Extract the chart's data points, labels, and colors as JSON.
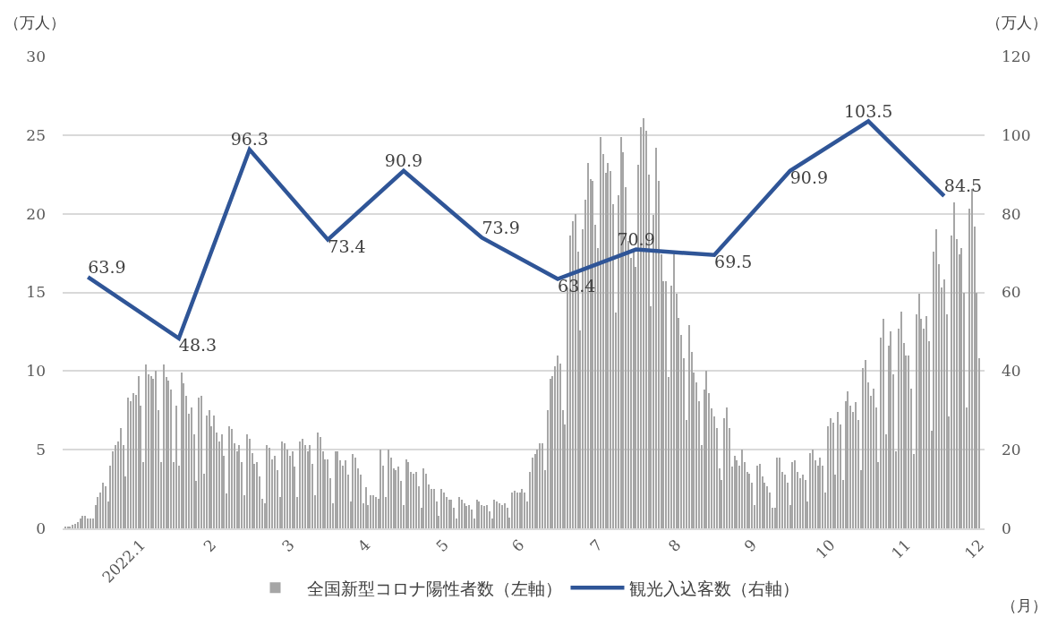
{
  "chart_data": {
    "type": "bar",
    "xlabel": "（月）",
    "ylabel": "（万人）",
    "y2label": "（万人）",
    "xlim": [
      "2021-12-31",
      "2022-12-31"
    ],
    "xticks": [
      {
        "value": "2022-01-31",
        "label": "2022.1"
      },
      {
        "value": "2022-02-28",
        "label": "2"
      },
      {
        "value": "2022-03-31",
        "label": "3"
      },
      {
        "value": "2022-04-30",
        "label": "4"
      },
      {
        "value": "2022-05-31",
        "label": "5"
      },
      {
        "value": "2022-06-30",
        "label": "6"
      },
      {
        "value": "2022-07-31",
        "label": "7"
      },
      {
        "value": "2022-08-31",
        "label": "8"
      },
      {
        "value": "2022-09-30",
        "label": "9"
      },
      {
        "value": "2022-10-31",
        "label": "10"
      },
      {
        "value": "2022-11-30",
        "label": "11"
      },
      {
        "value": "2022-12-29",
        "label": "12"
      }
    ],
    "ylim": [
      0,
      30
    ],
    "yticks": [
      0,
      5,
      10,
      15,
      20,
      25,
      30
    ],
    "y2lim": [
      0,
      120
    ],
    "y2ticks": [
      0,
      20,
      40,
      60,
      80,
      100,
      120
    ],
    "grid": "y",
    "legend": "bottom",
    "series": [
      {
        "name": "全国新型コロナ陽性者数（左軸）",
        "color": "#a6a6a6",
        "x": [
          "2022-01-01",
          "2022-01-02",
          "2022-01-03",
          "2022-01-04",
          "2022-01-05",
          "2022-01-06",
          "2022-01-07",
          "2022-01-08",
          "2022-01-09",
          "2022-01-10",
          "2022-01-11",
          "2022-01-12",
          "2022-01-13",
          "2022-01-14",
          "2022-01-15",
          "2022-01-16",
          "2022-01-17",
          "2022-01-18",
          "2022-01-19",
          "2022-01-20",
          "2022-01-21",
          "2022-01-22",
          "2022-01-23",
          "2022-01-24",
          "2022-01-25",
          "2022-01-26",
          "2022-01-27",
          "2022-01-28",
          "2022-01-29",
          "2022-01-30",
          "2022-01-31",
          "2022-02-01",
          "2022-02-02",
          "2022-02-03",
          "2022-02-04",
          "2022-02-05",
          "2022-02-06",
          "2022-02-07",
          "2022-02-08",
          "2022-02-09",
          "2022-02-10",
          "2022-02-11",
          "2022-02-12",
          "2022-02-13",
          "2022-02-14",
          "2022-02-15",
          "2022-02-16",
          "2022-02-17",
          "2022-02-18",
          "2022-02-19",
          "2022-02-20",
          "2022-02-21",
          "2022-02-22",
          "2022-02-23",
          "2022-02-24",
          "2022-02-25",
          "2022-02-26",
          "2022-02-27",
          "2022-02-28",
          "2022-03-01",
          "2022-03-02",
          "2022-03-03",
          "2022-03-04",
          "2022-03-05",
          "2022-03-06",
          "2022-03-07",
          "2022-03-08",
          "2022-03-09",
          "2022-03-10",
          "2022-03-11",
          "2022-03-12",
          "2022-03-13",
          "2022-03-14",
          "2022-03-15",
          "2022-03-16",
          "2022-03-17",
          "2022-03-18",
          "2022-03-19",
          "2022-03-20",
          "2022-03-21",
          "2022-03-22",
          "2022-03-23",
          "2022-03-24",
          "2022-03-25",
          "2022-03-26",
          "2022-03-27",
          "2022-03-28",
          "2022-03-29",
          "2022-03-30",
          "2022-03-31",
          "2022-04-01",
          "2022-04-02",
          "2022-04-03",
          "2022-04-04",
          "2022-04-05",
          "2022-04-06",
          "2022-04-07",
          "2022-04-08",
          "2022-04-09",
          "2022-04-10",
          "2022-04-11",
          "2022-04-12",
          "2022-04-13",
          "2022-04-14",
          "2022-04-15",
          "2022-04-16",
          "2022-04-17",
          "2022-04-18",
          "2022-04-19",
          "2022-04-20",
          "2022-04-21",
          "2022-04-22",
          "2022-04-23",
          "2022-04-24",
          "2022-04-25",
          "2022-04-26",
          "2022-04-27",
          "2022-04-28",
          "2022-04-29",
          "2022-04-30",
          "2022-05-01",
          "2022-05-02",
          "2022-05-03",
          "2022-05-04",
          "2022-05-05",
          "2022-05-06",
          "2022-05-07",
          "2022-05-08",
          "2022-05-09",
          "2022-05-10",
          "2022-05-11",
          "2022-05-12",
          "2022-05-13",
          "2022-05-14",
          "2022-05-15",
          "2022-05-16",
          "2022-05-17",
          "2022-05-18",
          "2022-05-19",
          "2022-05-20",
          "2022-05-21",
          "2022-05-22",
          "2022-05-23",
          "2022-05-24",
          "2022-05-25",
          "2022-05-26",
          "2022-05-27",
          "2022-05-28",
          "2022-05-29",
          "2022-05-30",
          "2022-05-31",
          "2022-06-01",
          "2022-06-02",
          "2022-06-03",
          "2022-06-04",
          "2022-06-05",
          "2022-06-06",
          "2022-06-07",
          "2022-06-08",
          "2022-06-09",
          "2022-06-10",
          "2022-06-11",
          "2022-06-12",
          "2022-06-13",
          "2022-06-14",
          "2022-06-15",
          "2022-06-16",
          "2022-06-17",
          "2022-06-18",
          "2022-06-19",
          "2022-06-20",
          "2022-06-21",
          "2022-06-22",
          "2022-06-23",
          "2022-06-24",
          "2022-06-25",
          "2022-06-26",
          "2022-06-27",
          "2022-06-28",
          "2022-06-29",
          "2022-06-30",
          "2022-07-01",
          "2022-07-02",
          "2022-07-03",
          "2022-07-04",
          "2022-07-05",
          "2022-07-06",
          "2022-07-07",
          "2022-07-08",
          "2022-07-09",
          "2022-07-10",
          "2022-07-11",
          "2022-07-12",
          "2022-07-13",
          "2022-07-14",
          "2022-07-15",
          "2022-07-16",
          "2022-07-17",
          "2022-07-18",
          "2022-07-19",
          "2022-07-20",
          "2022-07-21",
          "2022-07-22",
          "2022-07-23",
          "2022-07-24",
          "2022-07-25",
          "2022-07-26",
          "2022-07-27",
          "2022-07-28",
          "2022-07-29",
          "2022-07-30",
          "2022-07-31",
          "2022-08-01",
          "2022-08-02",
          "2022-08-03",
          "2022-08-04",
          "2022-08-05",
          "2022-08-06",
          "2022-08-07",
          "2022-08-08",
          "2022-08-09",
          "2022-08-10",
          "2022-08-11",
          "2022-08-12",
          "2022-08-13",
          "2022-08-14",
          "2022-08-15",
          "2022-08-16",
          "2022-08-17",
          "2022-08-18",
          "2022-08-19",
          "2022-08-20",
          "2022-08-21",
          "2022-08-22",
          "2022-08-23",
          "2022-08-24",
          "2022-08-25",
          "2022-08-26",
          "2022-08-27",
          "2022-08-28",
          "2022-08-29",
          "2022-08-30",
          "2022-08-31",
          "2022-09-01",
          "2022-09-02",
          "2022-09-03",
          "2022-09-04",
          "2022-09-05",
          "2022-09-06",
          "2022-09-07",
          "2022-09-08",
          "2022-09-09",
          "2022-09-10",
          "2022-09-11",
          "2022-09-12",
          "2022-09-13",
          "2022-09-14",
          "2022-09-15",
          "2022-09-16",
          "2022-09-17",
          "2022-09-18",
          "2022-09-19",
          "2022-09-20",
          "2022-09-21",
          "2022-09-22",
          "2022-09-23",
          "2022-09-24",
          "2022-09-25",
          "2022-09-26",
          "2022-09-27",
          "2022-09-28",
          "2022-09-29",
          "2022-09-30",
          "2022-10-01",
          "2022-10-02",
          "2022-10-03",
          "2022-10-04",
          "2022-10-05",
          "2022-10-06",
          "2022-10-07",
          "2022-10-08",
          "2022-10-09",
          "2022-10-10",
          "2022-10-11",
          "2022-10-12",
          "2022-10-13",
          "2022-10-14",
          "2022-10-15",
          "2022-10-16",
          "2022-10-17",
          "2022-10-18",
          "2022-10-19",
          "2022-10-20",
          "2022-10-21",
          "2022-10-22",
          "2022-10-23",
          "2022-10-24",
          "2022-10-25",
          "2022-10-26",
          "2022-10-27",
          "2022-10-28",
          "2022-10-29",
          "2022-10-30",
          "2022-10-31",
          "2022-11-01",
          "2022-11-02",
          "2022-11-03",
          "2022-11-04",
          "2022-11-05",
          "2022-11-06",
          "2022-11-07",
          "2022-11-08",
          "2022-11-09",
          "2022-11-10",
          "2022-11-11",
          "2022-11-12",
          "2022-11-13",
          "2022-11-14",
          "2022-11-15",
          "2022-11-16",
          "2022-11-17",
          "2022-11-18",
          "2022-11-19",
          "2022-11-20",
          "2022-11-21",
          "2022-11-22",
          "2022-11-23",
          "2022-11-24",
          "2022-11-25",
          "2022-11-26",
          "2022-11-27",
          "2022-11-28",
          "2022-11-29",
          "2022-11-30",
          "2022-12-01",
          "2022-12-02",
          "2022-12-03",
          "2022-12-04",
          "2022-12-05",
          "2022-12-06",
          "2022-12-07",
          "2022-12-08",
          "2022-12-09",
          "2022-12-10",
          "2022-12-11",
          "2022-12-12",
          "2022-12-13",
          "2022-12-14",
          "2022-12-15",
          "2022-12-16",
          "2022-12-17",
          "2022-12-18",
          "2022-12-19",
          "2022-12-20",
          "2022-12-21",
          "2022-12-22",
          "2022-12-23",
          "2022-12-24",
          "2022-12-25",
          "2022-12-26",
          "2022-12-27",
          "2022-12-28",
          "2022-12-29"
        ],
        "values": [
          0.1,
          0.1,
          0.1,
          0.2,
          0.3,
          0.4,
          0.6,
          0.8,
          0.8,
          0.6,
          0.6,
          0.6,
          1.5,
          2.0,
          2.3,
          2.9,
          2.7,
          1.7,
          4.0,
          4.9,
          5.3,
          5.5,
          6.4,
          5.3,
          3.3,
          8.3,
          8.1,
          8.6,
          8.5,
          9.7,
          7.8,
          4.2,
          10.4,
          9.8,
          9.7,
          9.5,
          10.0,
          7.5,
          4.2,
          10.4,
          9.6,
          9.4,
          8.8,
          4.2,
          7.8,
          4.0,
          9.9,
          9.2,
          8.4,
          7.3,
          7.7,
          6.0,
          3.0,
          8.3,
          8.4,
          3.5,
          7.2,
          7.5,
          6.5,
          7.2,
          6.1,
          5.5,
          6.0,
          4.6,
          2.2,
          6.5,
          6.3,
          5.4,
          4.9,
          5.3,
          4.2,
          2.1,
          6.0,
          5.7,
          4.8,
          4.1,
          4.2,
          3.3,
          1.9,
          1.6,
          5.3,
          5.1,
          4.4,
          4.6,
          3.7,
          2.0,
          5.5,
          5.4,
          5.0,
          4.6,
          4.9,
          3.9,
          2.0,
          5.5,
          5.7,
          5.3,
          4.9,
          5.3,
          4.1,
          2.1,
          6.1,
          5.8,
          4.9,
          4.4,
          4.4,
          3.2,
          1.6,
          4.9,
          4.9,
          4.3,
          4.0,
          4.3,
          3.4,
          1.7,
          4.7,
          4.5,
          3.8,
          3.4,
          1.6,
          2.6,
          1.5,
          2.1,
          2.1,
          2.0,
          1.9,
          5.0,
          4.0,
          2.0,
          5.0,
          4.5,
          3.8,
          3.7,
          3.9,
          3.0,
          1.5,
          4.4,
          4.2,
          3.6,
          3.5,
          3.6,
          2.7,
          1.3,
          3.8,
          3.5,
          2.8,
          2.5,
          2.5,
          1.7,
          0.8,
          2.5,
          2.3,
          2.0,
          1.8,
          1.8,
          1.3,
          0.6,
          2.0,
          1.8,
          1.6,
          1.4,
          1.5,
          1.2,
          0.6,
          1.8,
          1.7,
          1.5,
          1.4,
          1.5,
          1.1,
          0.6,
          1.8,
          1.7,
          1.6,
          1.5,
          1.6,
          1.3,
          0.7,
          2.3,
          2.4,
          2.3,
          2.3,
          2.5,
          2.3,
          1.7,
          3.6,
          4.5,
          4.7,
          5.0,
          5.4,
          5.4,
          3.7,
          7.5,
          9.5,
          9.7,
          10.3,
          11.0,
          10.5,
          7.5,
          6.6,
          15.3,
          18.6,
          19.5,
          20.0,
          17.6,
          12.6,
          19.0,
          20.9,
          23.2,
          22.2,
          22.1,
          19.3,
          17.8,
          24.9,
          23.8,
          22.6,
          23.2,
          22.7,
          20.6,
          13.7,
          21.2,
          24.9,
          23.9,
          21.7,
          18.3,
          17.2,
          17.6,
          16.6,
          23.1,
          25.5,
          26.1,
          25.3,
          22.5,
          14.1,
          19.9,
          24.2,
          22.1,
          17.4,
          15.7,
          15.7,
          9.6,
          15.4,
          17.4,
          14.9,
          13.4,
          12.3,
          10.8,
          6.9,
          12.9,
          11.2,
          9.9,
          9.3,
          8.1,
          5.3,
          8.8,
          10.0,
          8.6,
          7.6,
          7.1,
          6.4,
          3.8,
          3.1,
          7.0,
          7.7,
          6.4,
          3.9,
          4.6,
          4.3,
          4.0,
          5.0,
          4.2,
          3.6,
          3.5,
          2.9,
          1.5,
          4.0,
          4.1,
          3.3,
          2.9,
          2.7,
          2.3,
          1.3,
          1.3,
          4.5,
          4.5,
          3.6,
          3.4,
          2.9,
          1.5,
          4.2,
          4.3,
          3.6,
          3.2,
          3.4,
          3.1,
          1.7,
          4.8,
          5.0,
          4.3,
          4.0,
          4.5,
          4.0,
          2.3,
          6.5,
          7.0,
          6.7,
          3.4,
          7.4,
          6.6,
          3.1,
          8.1,
          8.7,
          7.8,
          7.4,
          8.0,
          6.9,
          3.7,
          10.2,
          10.7,
          9.3,
          8.4,
          8.9,
          7.7,
          4.2,
          12.1,
          13.3,
          6.0,
          11.6,
          12.5,
          9.8,
          4.9,
          12.7,
          13.8,
          11.8,
          11.0,
          11.0,
          8.9,
          4.7,
          13.6,
          14.9,
          13.3,
          12.7,
          13.5,
          11.9,
          6.2,
          17.6,
          19.0,
          16.8,
          15.3,
          15.8,
          13.6,
          7.1,
          18.6,
          20.7,
          18.4,
          17.4,
          17.8,
          15.0,
          7.7,
          20.3,
          21.6,
          19.2,
          15.0,
          10.8
        ]
      },
      {
        "name": "観光入込客数（右軸）",
        "type": "line",
        "axis": "y2",
        "color": "#2f5597",
        "line_style": "solid",
        "marker": "none",
        "x": [
          "2022-01-10",
          "2022-02-15",
          "2022-03-15",
          "2022-04-15",
          "2022-05-15",
          "2022-06-15",
          "2022-07-15",
          "2022-08-15",
          "2022-09-15",
          "2022-10-15",
          "2022-11-15",
          "2022-12-15"
        ],
        "values": [
          63.9,
          48.3,
          96.3,
          73.4,
          90.9,
          73.9,
          63.4,
          70.9,
          69.5,
          90.9,
          103.5,
          84.5
        ],
        "value_labels": [
          "63.9",
          "48.3",
          "96.3",
          "73.4",
          "90.9",
          "73.9",
          "63.4",
          "70.9",
          "69.5",
          "90.9",
          "103.5",
          "84.5"
        ]
      }
    ]
  }
}
